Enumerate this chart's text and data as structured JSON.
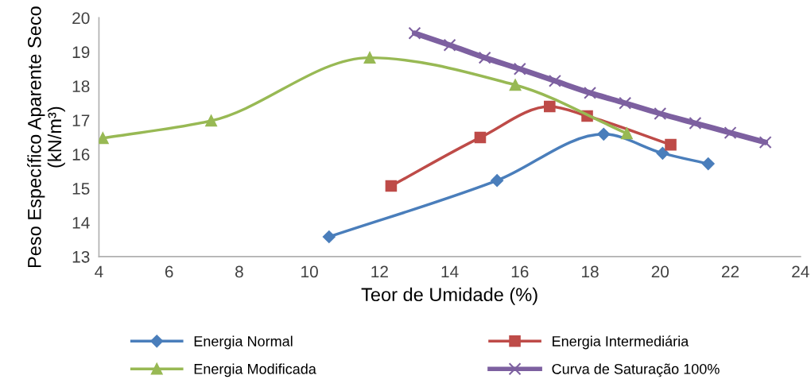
{
  "chart_data": {
    "type": "line",
    "xlabel": "Teor de Umidade (%)",
    "ylabel": "Peso Específico Aparente Seco\n(kN/m³)",
    "xlim": [
      4,
      24
    ],
    "xticks": [
      4,
      6,
      8,
      10,
      12,
      14,
      16,
      18,
      20,
      22,
      24
    ],
    "ylim": [
      13,
      20
    ],
    "yticks": [
      13,
      14,
      15,
      16,
      17,
      18,
      19,
      20
    ],
    "grid": false,
    "legend": "bottom",
    "line_style": "solid",
    "series": [
      {
        "name": "Energia Normal",
        "color": "#4a7ebb",
        "marker": "diamond",
        "x": [
          10.56,
          15.35,
          18.39,
          20.07,
          21.37
        ],
        "values": [
          13.58,
          15.23,
          16.59,
          16.03,
          15.72
        ]
      },
      {
        "name": "Energia Intermediária",
        "color": "#be4b48",
        "marker": "square",
        "x": [
          12.33,
          14.87,
          16.85,
          17.92,
          20.3
        ],
        "values": [
          15.07,
          16.49,
          17.4,
          17.12,
          16.28
        ]
      },
      {
        "name": "Energia Modificada",
        "color": "#98b954",
        "marker": "triangle",
        "x": [
          4.11,
          7.2,
          11.72,
          15.87,
          19.05
        ],
        "values": [
          16.47,
          16.98,
          18.83,
          18.03,
          16.61
        ]
      },
      {
        "name": "Curva de Saturação 100%",
        "color": "#7d60a0",
        "marker": "cross",
        "x": [
          13,
          14,
          15,
          16,
          17,
          18,
          19,
          20,
          21,
          22,
          23
        ],
        "values": [
          19.55,
          19.2,
          18.83,
          18.5,
          18.15,
          17.8,
          17.5,
          17.19,
          16.91,
          16.63,
          16.35
        ]
      }
    ]
  }
}
